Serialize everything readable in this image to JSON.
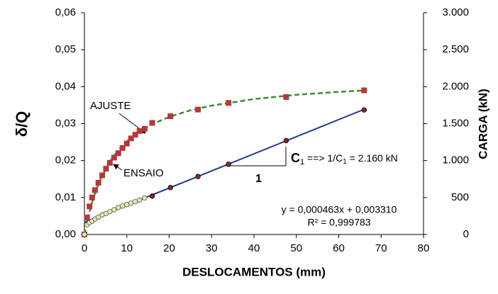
{
  "chart_data": {
    "type": "line",
    "xlabel": "DESLOCAMENTOS (mm)",
    "ylabel": "δ/Q",
    "y2label": "CARGA (kN)",
    "xlim": [
      0,
      80
    ],
    "xticks": [
      0,
      10,
      20,
      30,
      40,
      50,
      60,
      70,
      80
    ],
    "ylim": [
      0,
      0.06
    ],
    "yticks": [
      {
        "value": 0,
        "label": "0,00"
      },
      {
        "value": 0.01,
        "label": "0,01"
      },
      {
        "value": 0.02,
        "label": "0,02"
      },
      {
        "value": 0.03,
        "label": "0,03"
      },
      {
        "value": 0.04,
        "label": "0,04"
      },
      {
        "value": 0.05,
        "label": "0,05"
      },
      {
        "value": 0.06,
        "label": "0,06"
      }
    ],
    "y2lim": [
      0,
      3000
    ],
    "y2ticks": [
      0,
      500,
      {
        "value": 1000,
        "label": "1.000"
      },
      {
        "value": 1500,
        "label": "1.500"
      },
      {
        "value": 2000,
        "label": "2.000"
      },
      {
        "value": 2500,
        "label": "2.500"
      },
      {
        "value": 3000,
        "label": "3.000"
      }
    ],
    "series": [
      {
        "name": "ENSAIO",
        "axis": "y2",
        "color": "#b5383a",
        "marker": "square",
        "x": [
          0,
          0.6,
          1.2,
          1.8,
          2.5,
          3.3,
          4.2,
          5.1,
          6,
          7,
          8,
          9,
          10,
          11,
          12,
          13,
          14.2,
          16,
          20.3,
          26.8,
          34,
          47.6,
          66
        ],
        "values": [
          0,
          230,
          380,
          500,
          600,
          700,
          800,
          890,
          970,
          1040,
          1100,
          1170,
          1230,
          1300,
          1350,
          1400,
          1430,
          1510,
          1600,
          1690,
          1780,
          1860,
          1950
        ]
      },
      {
        "name": "AJUSTE",
        "axis": "y2",
        "color": "#3c8a3c",
        "line": "dashed",
        "x": [
          0,
          1,
          2,
          3,
          4,
          6,
          8,
          10,
          13,
          16,
          20,
          25,
          30,
          40,
          50,
          60,
          66
        ],
        "values": [
          0,
          265,
          472,
          638,
          775,
          986,
          1141,
          1259,
          1394,
          1493,
          1591,
          1680,
          1744,
          1832,
          1890,
          1930,
          1949
        ]
      },
      {
        "axis": "y",
        "color": "#f2e68a",
        "marker": "circle",
        "x": [
          0,
          0.6,
          1.2,
          1.8,
          2.5,
          3.3,
          4.2,
          5.1,
          6,
          7,
          8,
          9,
          10,
          11,
          12,
          13,
          14.2
        ],
        "values": [
          0,
          0.0026,
          0.0032,
          0.0036,
          0.0042,
          0.0047,
          0.0053,
          0.0057,
          0.0062,
          0.0067,
          0.0073,
          0.0077,
          0.0081,
          0.0085,
          0.0089,
          0.0093,
          0.0099
        ]
      },
      {
        "axis": "y",
        "color": "#1f3a8a",
        "line": "solid",
        "x": [
          0,
          66
        ],
        "values": [
          0.00331,
          0.03387
        ]
      },
      {
        "axis": "y",
        "color": "#8a2a2a",
        "marker": "circle",
        "x": [
          16,
          20.3,
          26.8,
          34,
          47.6,
          66
        ],
        "values": [
          0.0104,
          0.0127,
          0.0157,
          0.019,
          0.0254,
          0.0337
        ]
      }
    ],
    "annotations": {
      "slope": [
        "C",
        "1",
        " ==> 1/C",
        "1",
        " = 2.160 kN"
      ],
      "slope_unit": "1",
      "equation": "y = 0,000463x  + 0,003310",
      "r2": "R² = 0,999783"
    }
  }
}
